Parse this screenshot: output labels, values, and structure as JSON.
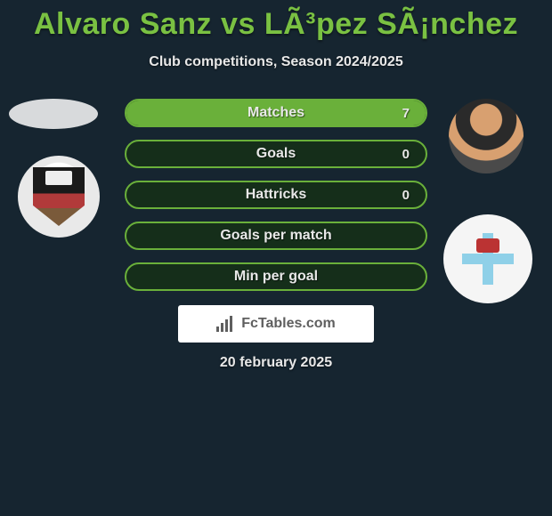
{
  "title": "Alvaro Sanz vs LÃ³pez SÃ¡nchez",
  "subtitle": "Club competitions, Season 2024/2025",
  "date": "20 february 2025",
  "brand": "FcTables.com",
  "colors": {
    "background": "#162530",
    "accent": "#7ac142",
    "bar_border": "#6ab03a",
    "bar_fill": "#6ab03a",
    "bar_bg": "#152e1a",
    "text": "#e8e8e8"
  },
  "bars": [
    {
      "label": "Matches",
      "value": "7",
      "fill_pct": 100
    },
    {
      "label": "Goals",
      "value": "0",
      "fill_pct": 0
    },
    {
      "label": "Hattricks",
      "value": "0",
      "fill_pct": 0
    },
    {
      "label": "Goals per match",
      "value": "",
      "fill_pct": 0
    },
    {
      "label": "Min per goal",
      "value": "",
      "fill_pct": 0
    }
  ]
}
